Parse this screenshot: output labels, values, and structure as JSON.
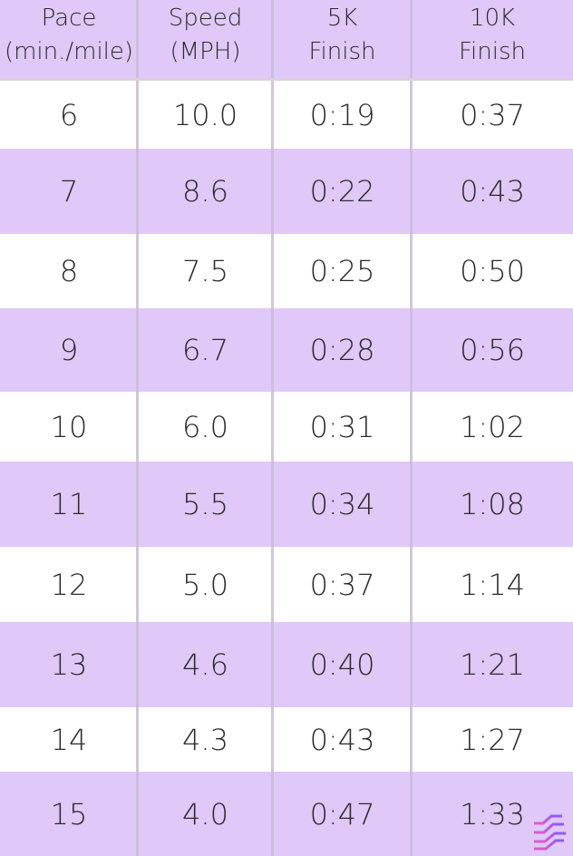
{
  "chart_data": {
    "type": "table",
    "columns": [
      {
        "lines": [
          "Pace",
          "(min./mile)"
        ]
      },
      {
        "lines": [
          "Speed",
          "(MPH)"
        ]
      },
      {
        "lines": [
          "5K",
          "Finish"
        ]
      },
      {
        "lines": [
          "10K",
          "Finish"
        ]
      }
    ],
    "rows": [
      [
        "6",
        "10.0",
        "0:19",
        "0:37"
      ],
      [
        "7",
        "8.6",
        "0:22",
        "0:43"
      ],
      [
        "8",
        "7.5",
        "0:25",
        "0:50"
      ],
      [
        "9",
        "6.7",
        "0:28",
        "0:56"
      ],
      [
        "10",
        "6.0",
        "0:31",
        "1:02"
      ],
      [
        "11",
        "5.5",
        "0:34",
        "1:08"
      ],
      [
        "12",
        "5.0",
        "0:37",
        "1:14"
      ],
      [
        "13",
        "4.6",
        "0:40",
        "1:21"
      ],
      [
        "14",
        "4.3",
        "0:43",
        "1:27"
      ],
      [
        "15",
        "4.0",
        "0:47",
        "1:33"
      ]
    ]
  },
  "colors": {
    "header_bg": "#e0c8f8",
    "stripe_bg": "#e0c8f8",
    "row_bg": "#ffffff",
    "text": "#2b2b2b",
    "logo_accent": "#8a5cf5",
    "logo_accent_2": "#e05cc8"
  },
  "logo": {
    "icon": "stacked-arrows-logo-icon"
  }
}
